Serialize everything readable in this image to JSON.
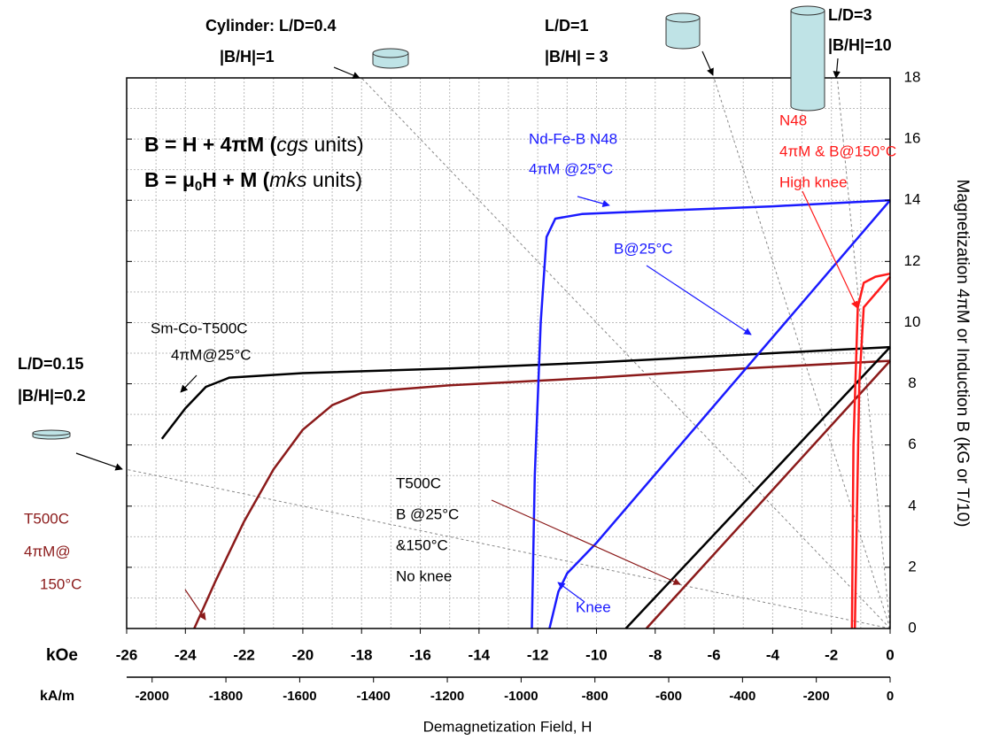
{
  "chart_data": {
    "type": "line",
    "xlabel_top": "kOe",
    "xlabel_bottom": "kA/m",
    "xlabel": "Demagnetization Field, H",
    "ylabel": "Magnetization 4πM or Induction B (kG or T/10)",
    "xlim": [
      -26,
      0
    ],
    "ylim": [
      0,
      18
    ],
    "x2lim": [
      -2069,
      0
    ],
    "xticks": [
      -26,
      -24,
      -22,
      -20,
      -18,
      -16,
      -14,
      -12,
      -10,
      -8,
      -6,
      -4,
      -2,
      0
    ],
    "x2ticks": [
      -2000,
      -1800,
      -1600,
      -1400,
      -1200,
      -1000,
      -800,
      -600,
      -400,
      -200,
      0
    ],
    "yticks": [
      0,
      2,
      4,
      6,
      8,
      10,
      12,
      14,
      16,
      18
    ],
    "xminor": [
      -25,
      -23,
      -21,
      -19,
      -17,
      -15,
      -13,
      -11,
      -9,
      -7,
      -5,
      -3,
      -1
    ],
    "yminor": [
      1,
      3,
      5,
      7,
      9,
      11,
      13,
      15,
      17
    ],
    "grid": true,
    "series": [
      {
        "color": "#000000",
        "x": [
          -24.8,
          -24.0,
          -23.3,
          -22.5,
          -20,
          -15,
          -10,
          -5,
          -2,
          0
        ],
        "y": [
          6.2,
          7.2,
          7.9,
          8.2,
          8.35,
          8.5,
          8.7,
          8.95,
          9.1,
          9.2
        ]
      },
      {
        "color": "#8b1a1a",
        "x": [
          -23.7,
          -23,
          -22,
          -21,
          -20,
          -19,
          -18,
          -17,
          -15,
          -10,
          -5,
          0
        ],
        "y": [
          0,
          1.5,
          3.5,
          5.2,
          6.5,
          7.3,
          7.7,
          7.8,
          7.95,
          8.2,
          8.5,
          8.75
        ]
      },
      {
        "color": "#000000",
        "x": [
          -9.0,
          0
        ],
        "y": [
          0,
          9.2
        ]
      },
      {
        "color": "#8b1a1a",
        "x": [
          -8.3,
          0
        ],
        "y": [
          0,
          8.75
        ]
      },
      {
        "color": "#1a1aff",
        "x": [
          -12.2,
          -12.1,
          -11.9,
          -11.7,
          -11.4,
          -10.5,
          -8,
          -4,
          0
        ],
        "y": [
          0,
          5,
          10,
          12.8,
          13.4,
          13.55,
          13.65,
          13.8,
          14
        ]
      },
      {
        "color": "#1a1aff",
        "x": [
          -11.6,
          -11.3,
          -11,
          -10.5,
          -10,
          0
        ],
        "y": [
          0,
          1.2,
          1.8,
          2.3,
          2.8,
          14
        ]
      },
      {
        "color": "#ff1a1a",
        "x": [
          -1.3,
          -1.25,
          -1.1,
          -0.9,
          -0.5,
          0
        ],
        "y": [
          0,
          6,
          10.5,
          11.3,
          11.5,
          11.6
        ]
      },
      {
        "color": "#ff1a1a",
        "x": [
          -1.2,
          -1.05,
          -0.9,
          0
        ],
        "y": [
          0,
          8,
          10.5,
          11.5
        ]
      }
    ],
    "load_lines": [
      {
        "x": [
          0,
          -18
        ],
        "y": [
          0,
          18
        ]
      },
      {
        "x": [
          0,
          -6
        ],
        "y": [
          0,
          18
        ]
      },
      {
        "x": [
          0,
          -1.8
        ],
        "y": [
          0,
          18
        ]
      },
      {
        "x": [
          0,
          -26
        ],
        "y": [
          0,
          5.2
        ]
      }
    ],
    "annotations": [
      {
        "color": "#000000",
        "lines": [
          "Cylinder: L/D=0.4",
          "|B/H|=1"
        ]
      },
      {
        "color": "#000000",
        "lines": [
          "L/D=1",
          "|B/H| = 3"
        ]
      },
      {
        "color": "#000000",
        "lines": [
          "L/D=3",
          "|B/H|=10"
        ]
      },
      {
        "color": "#000000",
        "lines": [
          "L/D=0.15",
          "|B/H|=0.2"
        ]
      },
      {
        "color": "#000000",
        "lines": [
          [
            "B = H + 4πM (",
            "cgs",
            " units)"
          ],
          [
            "B = μ",
            "0",
            "H + M (",
            "mks",
            " units)"
          ]
        ]
      },
      {
        "color": "#1a1aff",
        "lines": [
          "Nd-Fe-B N48",
          "4πM @25°C"
        ]
      },
      {
        "color": "#1a1aff",
        "lines": [
          "B@25°C"
        ]
      },
      {
        "color": "#000000",
        "lines": [
          "Sm-Co-T500C",
          "4πM@25°C"
        ]
      },
      {
        "color": "#8b1a1a",
        "lines": [
          "T500C",
          "4πM@",
          "150°C"
        ]
      },
      {
        "color": "#000000",
        "lines": [
          "T500C",
          "B @25°C",
          "&150°C",
          "No knee"
        ]
      },
      {
        "color": "#ff1a1a",
        "lines": [
          "N48",
          "4πM & B@150°C",
          "High knee"
        ]
      },
      {
        "color": "#1a1aff",
        "lines": [
          "Knee"
        ]
      }
    ]
  }
}
